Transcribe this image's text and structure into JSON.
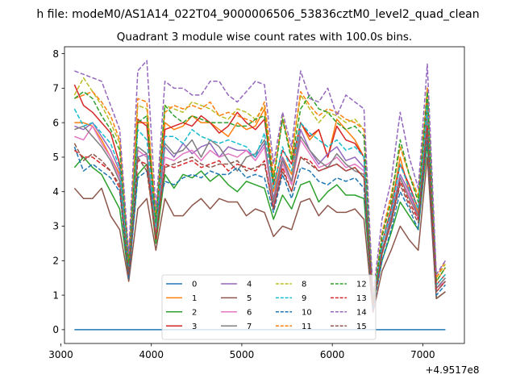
{
  "chart_data": {
    "type": "line",
    "suptitle": "h file: modeM0/AS1A14_022T04_9000006506_53836cztM0_level2_quad_clean",
    "title": "Quadrant 3 module wise count rates with 100.0s bins.",
    "xlabel": "",
    "ylabel": "",
    "x_offset_label": "+4.9517e8",
    "xlim": [
      3040,
      7460
    ],
    "ylim": [
      -0.4,
      8.2
    ],
    "x_ticks": [
      3000,
      4000,
      5000,
      6000,
      7000
    ],
    "x_tick_labels": [
      "3000",
      "4000",
      "5000",
      "6000",
      "7000"
    ],
    "y_ticks": [
      0,
      1,
      2,
      3,
      4,
      5,
      6,
      7,
      8
    ],
    "y_tick_labels": [
      "0",
      "1",
      "2",
      "3",
      "4",
      "5",
      "6",
      "7",
      "8"
    ],
    "legend_position": "lower center",
    "legend_columns": 4,
    "x": [
      3150,
      3250,
      3350,
      3450,
      3550,
      3650,
      3750,
      3850,
      3950,
      4050,
      4150,
      4250,
      4350,
      4450,
      4550,
      4650,
      4750,
      4850,
      4950,
      5050,
      5150,
      5250,
      5350,
      5450,
      5550,
      5650,
      5750,
      5850,
      5950,
      6050,
      6150,
      6250,
      6350,
      6450,
      6550,
      6650,
      6750,
      6850,
      6950,
      7050,
      7150,
      7250
    ],
    "series": [
      {
        "name": "0",
        "color": "#1f77b4",
        "dash": "solid",
        "values": [
          0,
          0,
          0,
          0,
          0,
          0,
          0,
          0,
          0,
          0,
          0,
          0,
          0,
          0,
          0,
          0,
          0,
          0,
          0,
          0,
          0,
          0,
          0,
          0,
          0,
          0,
          0,
          0,
          0,
          0,
          0,
          0,
          0,
          0,
          0,
          0,
          0,
          0,
          0,
          0,
          0,
          0
        ]
      },
      {
        "name": "1",
        "color": "#ff7f0e",
        "dash": "solid",
        "values": [
          6.0,
          6.0,
          5.9,
          5.5,
          5.0,
          4.5,
          1.8,
          6.0,
          6.0,
          3.0,
          6.0,
          5.8,
          5.9,
          6.2,
          6.0,
          6.0,
          5.8,
          5.6,
          6.0,
          5.8,
          5.9,
          6.4,
          4.0,
          5.0,
          4.5,
          6.0,
          5.5,
          5.8,
          5.0,
          6.1,
          5.8,
          5.5,
          5.0,
          0.8,
          2.5,
          3.5,
          5.0,
          4.0,
          3.4,
          6.5,
          1.4,
          1.8
        ]
      },
      {
        "name": "2",
        "color": "#2ca02c",
        "dash": "solid",
        "values": [
          4.7,
          5.0,
          4.7,
          4.5,
          4.0,
          3.5,
          1.5,
          4.5,
          4.8,
          2.5,
          4.5,
          4.1,
          4.5,
          4.4,
          4.6,
          4.3,
          4.5,
          4.2,
          4.0,
          4.3,
          4.2,
          4.1,
          3.2,
          3.9,
          3.5,
          4.2,
          4.3,
          3.7,
          4.0,
          4.2,
          3.9,
          3.9,
          3.8,
          0.7,
          2.0,
          2.8,
          3.7,
          3.3,
          2.9,
          5.4,
          0.9,
          1.1
        ]
      },
      {
        "name": "3",
        "color": "#d62728",
        "dash": "solid",
        "values": [
          7.1,
          6.5,
          6.3,
          6.0,
          5.7,
          4.8,
          1.8,
          6.1,
          5.9,
          3.2,
          5.8,
          5.9,
          6.0,
          5.9,
          6.2,
          6.0,
          5.7,
          5.9,
          6.3,
          6.0,
          5.8,
          6.1,
          4.2,
          5.2,
          4.8,
          6.0,
          5.6,
          5.8,
          5.0,
          5.9,
          5.5,
          5.4,
          5.0,
          0.8,
          2.5,
          3.5,
          4.8,
          4.2,
          3.5,
          6.6,
          1.3,
          1.6
        ]
      },
      {
        "name": "4",
        "color": "#9467bd",
        "dash": "solid",
        "values": [
          5.9,
          5.8,
          6.0,
          5.6,
          5.2,
          4.6,
          1.8,
          5.0,
          5.1,
          3.0,
          5.3,
          5.0,
          5.4,
          5.1,
          5.3,
          5.4,
          5.0,
          5.3,
          5.2,
          5.2,
          5.0,
          5.4,
          3.8,
          5.0,
          4.3,
          5.8,
          5.2,
          4.8,
          5.1,
          5.3,
          4.9,
          5.0,
          4.7,
          0.7,
          2.3,
          3.3,
          4.5,
          4.0,
          3.3,
          6.2,
          1.2,
          1.5
        ]
      },
      {
        "name": "5",
        "color": "#8c564b",
        "dash": "solid",
        "values": [
          4.1,
          3.8,
          3.8,
          4.1,
          3.3,
          2.9,
          1.4,
          3.5,
          3.8,
          2.3,
          3.8,
          3.3,
          3.3,
          3.6,
          3.8,
          3.5,
          3.8,
          3.7,
          3.7,
          3.3,
          3.5,
          3.4,
          2.7,
          3.0,
          2.9,
          3.7,
          3.8,
          3.3,
          3.6,
          3.4,
          3.4,
          3.5,
          3.2,
          0.5,
          1.7,
          2.3,
          3.0,
          2.6,
          2.3,
          5.0,
          0.9,
          1.1
        ]
      },
      {
        "name": "6",
        "color": "#e377c2",
        "dash": "solid",
        "values": [
          5.6,
          5.5,
          5.9,
          5.4,
          5.0,
          4.4,
          1.7,
          5.2,
          5.0,
          2.8,
          5.0,
          4.9,
          5.1,
          5.2,
          4.9,
          5.2,
          5.0,
          5.1,
          5.0,
          5.2,
          4.9,
          5.3,
          3.6,
          4.8,
          4.2,
          5.5,
          5.1,
          4.7,
          4.8,
          5.0,
          4.7,
          4.8,
          4.6,
          0.7,
          2.2,
          3.2,
          4.4,
          3.9,
          3.2,
          6.0,
          1.2,
          1.4
        ]
      },
      {
        "name": "7",
        "color": "#7f7f7f",
        "dash": "solid",
        "values": [
          5.8,
          5.9,
          5.6,
          5.3,
          4.9,
          4.3,
          1.6,
          5.3,
          5.1,
          2.7,
          5.4,
          5.1,
          5.2,
          5.5,
          5.0,
          5.5,
          5.3,
          4.9,
          4.6,
          5.0,
          5.1,
          5.5,
          3.7,
          4.9,
          4.3,
          5.6,
          5.2,
          4.9,
          4.7,
          5.1,
          4.8,
          4.6,
          4.5,
          0.7,
          2.3,
          3.2,
          4.4,
          3.8,
          3.3,
          6.1,
          1.2,
          1.5
        ]
      },
      {
        "name": "8",
        "color": "#bcbd22",
        "dash": "dashed",
        "values": [
          6.8,
          7.3,
          6.9,
          6.5,
          6.0,
          5.4,
          2.0,
          6.5,
          6.4,
          3.3,
          6.5,
          6.4,
          6.3,
          6.6,
          6.5,
          6.4,
          6.2,
          6.1,
          6.4,
          6.3,
          6.1,
          6.5,
          4.4,
          6.2,
          5.0,
          6.8,
          6.4,
          6.0,
          6.3,
          6.2,
          6.0,
          6.1,
          5.8,
          0.9,
          2.8,
          3.8,
          5.3,
          4.5,
          3.8,
          7.0,
          1.5,
          1.9
        ]
      },
      {
        "name": "9",
        "color": "#17becf",
        "dash": "dashed",
        "values": [
          6.4,
          5.9,
          6.0,
          5.7,
          5.4,
          4.7,
          1.8,
          5.8,
          5.5,
          3.0,
          5.6,
          5.6,
          5.4,
          5.8,
          5.6,
          5.5,
          5.4,
          5.5,
          5.4,
          5.3,
          5.0,
          5.7,
          4.1,
          5.3,
          4.6,
          6.0,
          5.7,
          5.5,
          5.3,
          5.5,
          5.2,
          5.3,
          5.0,
          0.8,
          2.5,
          3.4,
          4.8,
          4.1,
          3.5,
          6.5,
          1.3,
          1.6
        ]
      },
      {
        "name": "10",
        "color": "#1f77b4",
        "dash": "dashed",
        "values": [
          5.3,
          4.6,
          4.8,
          4.6,
          4.4,
          4.0,
          1.5,
          4.4,
          4.6,
          3.3,
          4.3,
          4.2,
          4.4,
          4.5,
          4.4,
          4.6,
          4.5,
          4.5,
          4.7,
          4.4,
          4.5,
          4.4,
          3.4,
          4.5,
          3.8,
          4.7,
          4.6,
          4.3,
          4.2,
          4.4,
          4.3,
          4.4,
          4.1,
          0.6,
          2.0,
          2.9,
          4.0,
          3.5,
          2.9,
          5.6,
          1.0,
          1.3
        ]
      },
      {
        "name": "11",
        "color": "#ff7f0e",
        "dash": "dashed",
        "values": [
          6.7,
          6.8,
          6.9,
          6.6,
          6.2,
          5.5,
          2.0,
          6.7,
          6.6,
          3.2,
          6.3,
          6.5,
          6.4,
          6.5,
          6.4,
          6.6,
          6.2,
          6.3,
          6.2,
          6.1,
          6.0,
          6.6,
          4.5,
          6.1,
          5.1,
          6.9,
          6.5,
          6.2,
          6.4,
          6.3,
          6.1,
          6.0,
          5.8,
          0.9,
          2.8,
          3.9,
          5.3,
          4.5,
          3.9,
          7.0,
          1.5,
          2.0
        ]
      },
      {
        "name": "12",
        "color": "#2ca02c",
        "dash": "dashed",
        "values": [
          6.7,
          6.9,
          6.7,
          6.2,
          5.8,
          5.2,
          1.9,
          6.0,
          6.2,
          3.1,
          6.5,
          6.2,
          6.0,
          6.2,
          6.1,
          6.0,
          6.0,
          6.0,
          5.9,
          5.9,
          6.1,
          6.2,
          4.3,
          6.1,
          4.9,
          6.4,
          6.8,
          6.4,
          6.3,
          6.0,
          5.8,
          5.9,
          5.6,
          0.8,
          2.7,
          3.7,
          5.5,
          4.5,
          3.7,
          6.9,
          1.4,
          1.8
        ]
      },
      {
        "name": "13",
        "color": "#d62728",
        "dash": "dashed",
        "values": [
          5.2,
          5.0,
          5.0,
          4.8,
          4.6,
          4.1,
          1.6,
          4.9,
          4.8,
          2.6,
          4.8,
          4.7,
          4.8,
          4.9,
          4.7,
          4.8,
          4.9,
          4.6,
          4.8,
          4.7,
          4.6,
          4.9,
          3.5,
          4.7,
          4.0,
          5.0,
          4.9,
          4.6,
          4.7,
          4.8,
          4.6,
          4.7,
          4.4,
          0.7,
          2.2,
          3.1,
          4.3,
          3.7,
          3.2,
          5.9,
          1.1,
          1.4
        ]
      },
      {
        "name": "14",
        "color": "#9467bd",
        "dash": "dashed",
        "values": [
          7.5,
          7.4,
          7.3,
          7.2,
          6.5,
          5.8,
          2.2,
          7.5,
          7.8,
          3.5,
          7.2,
          7.0,
          7.0,
          6.8,
          6.8,
          7.2,
          7.2,
          6.8,
          6.6,
          6.9,
          7.2,
          7.1,
          4.8,
          6.3,
          5.3,
          7.5,
          6.7,
          6.6,
          7.0,
          6.2,
          6.8,
          6.6,
          6.4,
          1.0,
          3.2,
          4.3,
          6.3,
          5.0,
          4.1,
          7.7,
          1.6,
          2.0
        ]
      },
      {
        "name": "15",
        "color": "#8c564b",
        "dash": "dashed",
        "values": [
          5.4,
          4.9,
          5.1,
          4.9,
          4.6,
          4.2,
          1.6,
          5.0,
          4.6,
          2.7,
          4.7,
          4.8,
          4.9,
          5.0,
          4.8,
          4.7,
          4.8,
          4.8,
          4.9,
          4.6,
          4.7,
          4.8,
          3.5,
          4.6,
          4.0,
          5.0,
          4.8,
          4.6,
          4.7,
          4.8,
          4.6,
          4.7,
          4.4,
          0.7,
          2.2,
          3.1,
          4.2,
          3.6,
          3.1,
          5.8,
          1.1,
          1.4
        ]
      }
    ]
  }
}
